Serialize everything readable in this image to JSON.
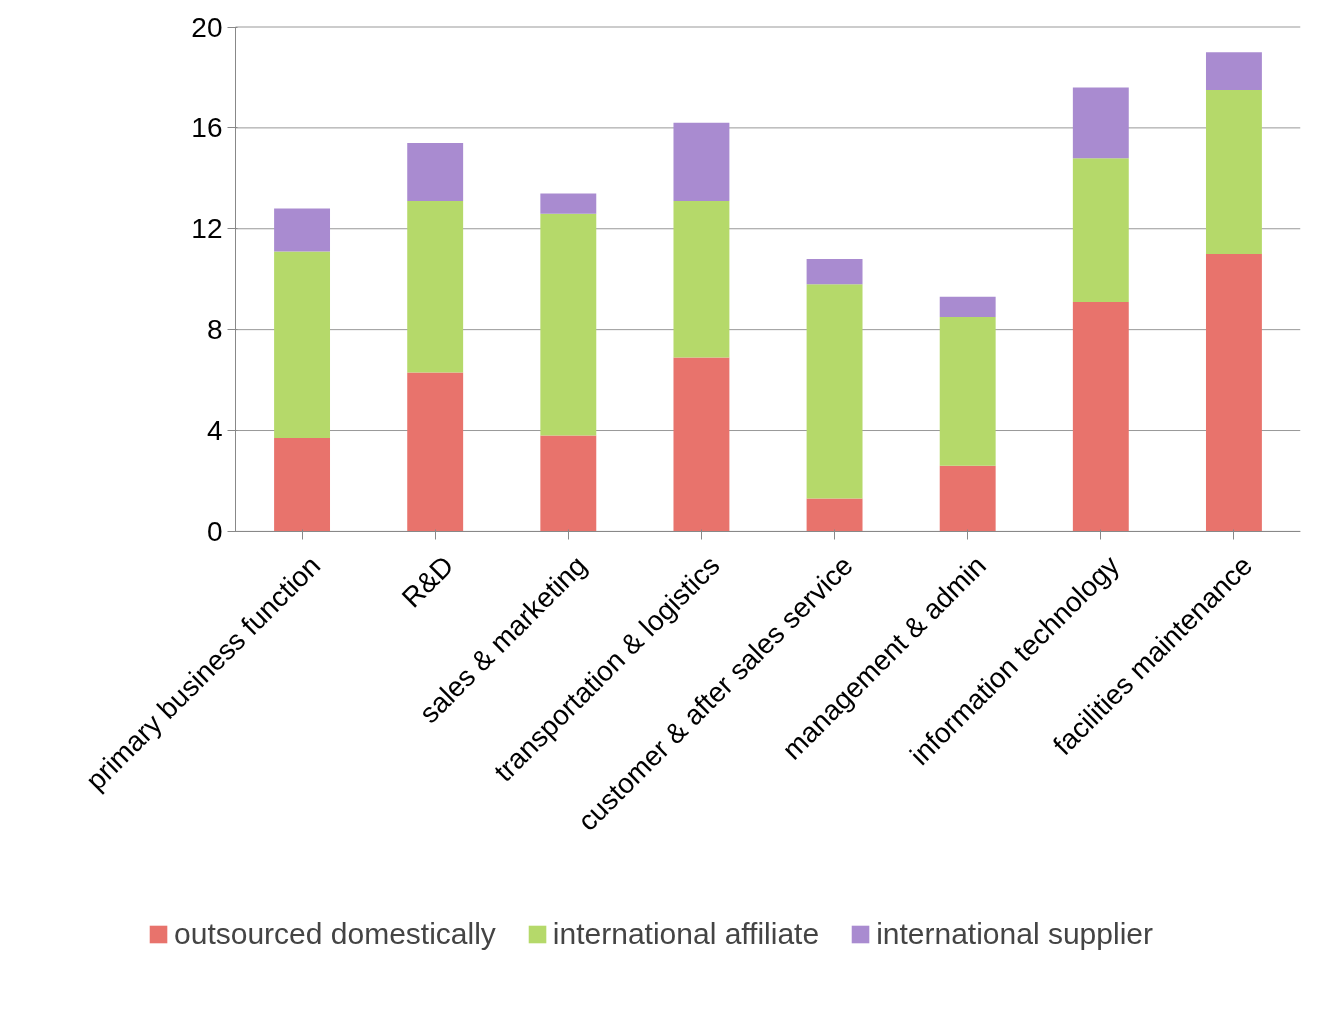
{
  "chart_data": {
    "type": "bar",
    "stacked": true,
    "categories": [
      "primary business function",
      "R&D",
      "sales & marketing",
      "transportation & logistics",
      "customer & after sales service",
      "management & admin",
      "information technology",
      "facilities maintenance"
    ],
    "series": [
      {
        "name": "outsourced domestically",
        "color": "#e8736c",
        "values": [
          3.7,
          6.3,
          3.8,
          6.9,
          1.3,
          2.6,
          9.1,
          11.0
        ]
      },
      {
        "name": "international affiliate",
        "color": "#b5d96a",
        "values": [
          7.4,
          6.8,
          8.8,
          6.2,
          8.5,
          5.9,
          5.7,
          6.5
        ]
      },
      {
        "name": "international supplier",
        "color": "#a98bd0",
        "values": [
          1.7,
          2.3,
          0.8,
          3.1,
          1.0,
          0.8,
          2.8,
          1.5
        ]
      }
    ],
    "ylim": [
      0,
      20
    ],
    "yticks": [
      0,
      4,
      8,
      12,
      16,
      20
    ],
    "grid": "y",
    "legend": "bottom"
  }
}
